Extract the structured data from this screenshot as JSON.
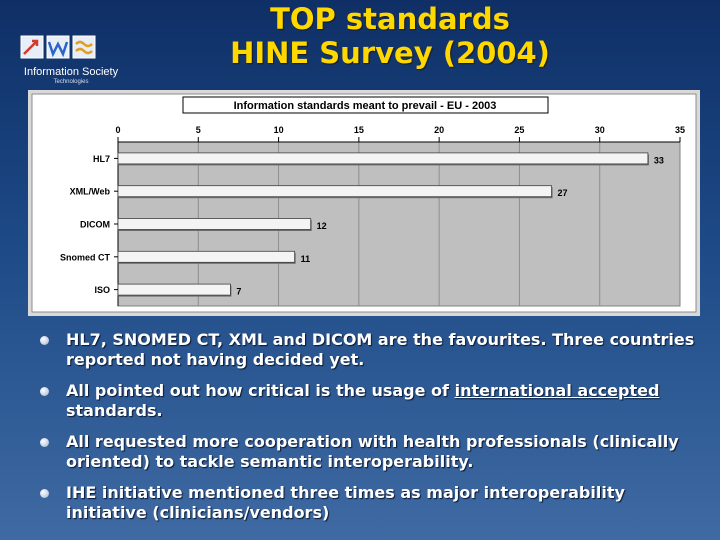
{
  "slide": {
    "title_line1": "TOP standards",
    "title_line2": "HINE Survey (2004)",
    "logo_text": "Information Society",
    "logo_sub": "Technologies"
  },
  "chart_data": {
    "type": "bar",
    "orientation": "horizontal",
    "title": "Information standards meant to prevail - EU - 2003",
    "categories": [
      "HL7",
      "XML/Web",
      "DICOM",
      "Snomed CT",
      "ISO"
    ],
    "values": [
      33,
      27,
      12,
      11,
      7
    ],
    "xlim": [
      0,
      35
    ],
    "ticks": [
      0,
      5,
      10,
      15,
      20,
      25,
      30,
      35
    ],
    "xlabel": "",
    "ylabel": "",
    "grid": true,
    "axis_position": "top",
    "data_labels": true,
    "colors": {
      "bar": "#f4f4f4",
      "plot_bg": "#bfbfbf",
      "frame": "#ffffff"
    }
  },
  "bullets": [
    {
      "segments": [
        {
          "text": "HL7, SNOMED CT, XML and DICOM are the favourites. Three countries reported not having decided yet.",
          "underline": false
        }
      ]
    },
    {
      "segments": [
        {
          "text": "All pointed out how critical is the usage of ",
          "underline": false
        },
        {
          "text": "international accepted",
          "underline": true
        },
        {
          "text": " standards.",
          "underline": false
        }
      ]
    },
    {
      "segments": [
        {
          "text": "All requested more cooperation with health professionals (clinically oriented) to tackle semantic interoperability.",
          "underline": false
        }
      ]
    },
    {
      "segments": [
        {
          "text": "IHE initiative mentioned three times as major interoperability initiative (clinicians/vendors)",
          "underline": false
        }
      ]
    }
  ]
}
